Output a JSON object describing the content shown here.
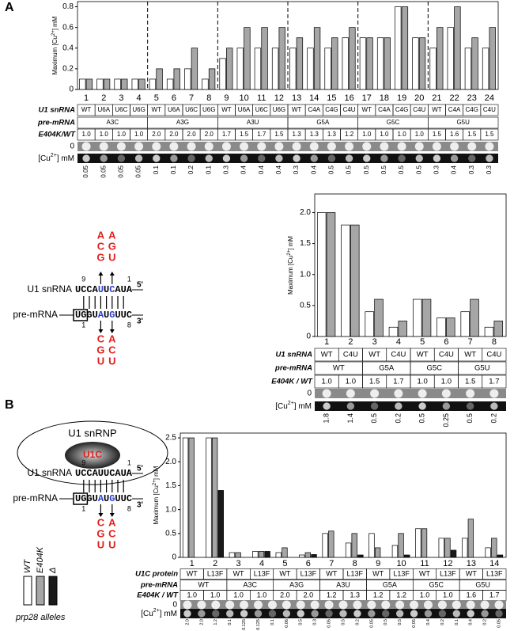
{
  "panel_labels": [
    "A",
    "B"
  ],
  "chart_data": [
    {
      "type": "bar",
      "categories": [
        "1",
        "2",
        "3",
        "4",
        "5",
        "6",
        "7",
        "8",
        "9",
        "10",
        "11",
        "12",
        "13",
        "14",
        "15",
        "16",
        "17",
        "18",
        "19",
        "20",
        "21",
        "22",
        "23",
        "24"
      ],
      "y_label": [
        "Maximum [Cu",
        "2+",
        "] mM"
      ],
      "ylim": [
        0,
        0.85
      ],
      "yticks": [
        0,
        0.2,
        0.4,
        0.6,
        0.8
      ],
      "series": [
        {
          "color": "#ffffff",
          "values": [
            0.1,
            0.1,
            0.1,
            0.1,
            0.1,
            0.1,
            0.2,
            0.1,
            0.3,
            0.4,
            0.4,
            0.4,
            0.4,
            0.4,
            0.4,
            0.5,
            0.5,
            0.5,
            0.8,
            0.5,
            0.4,
            0.6,
            0.4,
            0.4
          ]
        },
        {
          "color": "#a6a6a6",
          "values": [
            0.1,
            0.1,
            0.1,
            0.1,
            0.2,
            0.2,
            0.4,
            0.2,
            0.4,
            0.6,
            0.6,
            0.6,
            0.5,
            0.6,
            0.5,
            0.6,
            0.5,
            0.5,
            0.8,
            0.5,
            0.6,
            0.8,
            0.5,
            0.6
          ]
        }
      ],
      "rows": [
        {
          "label": "U1 snRNA",
          "cells": [
            "WT",
            "U6A",
            "U6C",
            "U6G",
            "WT",
            "U6A",
            "U6C",
            "U6G",
            "WT",
            "U6A",
            "U6C",
            "U6G",
            "WT",
            "C4A",
            "C4G",
            "C4U",
            "WT",
            "C4A",
            "C4G",
            "C4U",
            "WT",
            "C4A",
            "C4G",
            "C4U"
          ]
        },
        {
          "label": "pre-mRNA",
          "cells": [
            "A3C",
            "A3G",
            "A3U",
            "G5A",
            "G5C",
            "G5U"
          ]
        },
        {
          "label": "E404K/WT",
          "cells": [
            "1.0",
            "1.0",
            "1.0",
            "1.0",
            "2.0",
            "2.0",
            "2.0",
            "2.0",
            "1.7",
            "1.5",
            "1.7",
            "1.5",
            "1.3",
            "1.3",
            "1.3",
            "1.2",
            "1.0",
            "1.0",
            "1.0",
            "1.0",
            "1.5",
            "1.6",
            "1.5",
            "1.5"
          ]
        }
      ],
      "spot_row_labels": [
        "0",
        "[Cu",
        "2+",
        "] mM"
      ],
      "spot_labels": [
        "0.05",
        "0.05",
        "0.05",
        "0.05",
        "0.1",
        "0.1",
        "0.2",
        "0.1",
        "0.3",
        "0.4",
        "0.4",
        "0.4",
        "0.3",
        "0.4",
        "0.5",
        "0.5",
        "0.5",
        "0.5",
        "0.5",
        "0.5",
        "0.3",
        "0.4",
        "0.3",
        "0.3"
      ]
    },
    {
      "type": "bar",
      "categories": [
        "1",
        "2",
        "3",
        "4",
        "5",
        "6",
        "7",
        "8"
      ],
      "y_label": [
        "Maximum [Cu",
        "2+",
        "] mM"
      ],
      "ylim": [
        0,
        2.3
      ],
      "yticks": [
        0,
        0.5,
        {
          "value": 1,
          "label": "1.0"
        },
        1.5,
        {
          "value": 2,
          "label": "2.0"
        }
      ],
      "series": [
        {
          "color": "#ffffff",
          "values": [
            2.0,
            1.8,
            0.4,
            0.15,
            0.6,
            0.3,
            0.4,
            0.15
          ]
        },
        {
          "color": "#a6a6a6",
          "values": [
            2.0,
            1.8,
            0.6,
            0.25,
            0.6,
            0.3,
            0.6,
            0.25
          ]
        }
      ],
      "rows": [
        {
          "label": "U1 snRNA",
          "cells": [
            "WT",
            "C4U",
            "WT",
            "C4U",
            "WT",
            "C4U",
            "WT",
            "C4U"
          ]
        },
        {
          "label": "pre-mRNA",
          "cells": [
            "WT",
            "G5A",
            "G5C",
            "G5U"
          ]
        },
        {
          "label": "E404K / WT",
          "cells": [
            "1.0",
            "1.0",
            "1.5",
            "1.7",
            "1.0",
            "1.0",
            "1.5",
            "1.7"
          ]
        }
      ],
      "spot_row_labels": [
        "0",
        "[Cu",
        "2+",
        "] mM"
      ],
      "spot_labels": [
        "1.8",
        "1.4",
        "0.5",
        "0.2",
        "0.5",
        "0.25",
        "0.5",
        "0.2"
      ]
    },
    {
      "type": "bar",
      "categories": [
        "1",
        "2",
        "3",
        "4",
        "5",
        "6",
        "7",
        "8",
        "9",
        "10",
        "11",
        "12",
        "13",
        "14"
      ],
      "y_label": [
        "Maximum [Cu",
        "2+",
        "] mM"
      ],
      "ylim": [
        0,
        2.6
      ],
      "yticks": [
        0,
        0.5,
        {
          "value": 1,
          "label": "1.0"
        },
        1.5,
        {
          "value": 2,
          "label": "2.0"
        },
        2.5
      ],
      "series": [
        {
          "name": "WT",
          "color": "#ffffff",
          "values": [
            2.5,
            2.5,
            0.1,
            0.125,
            0.1,
            0.05,
            0.5,
            0.3,
            0.5,
            0.25,
            0.6,
            0.4,
            0.4,
            0.2
          ]
        },
        {
          "name": "E404K",
          "color": "#a6a6a6",
          "values": [
            2.5,
            2.5,
            0.1,
            0.125,
            0.2,
            0.1,
            0.55,
            0.5,
            0.2,
            0.5,
            0.6,
            0.4,
            0.8,
            0.4
          ]
        },
        {
          "name": "Δ",
          "color": "#1a1a1a",
          "values": [
            null,
            1.4,
            null,
            0.125,
            null,
            0.06,
            null,
            0.05,
            null,
            0.05,
            null,
            0.15,
            null,
            0.05
          ]
        }
      ],
      "legend_title": "prp28 alleles",
      "rows": [
        {
          "label": "U1C protein",
          "cells": [
            "WT",
            "L13F",
            "WT",
            "L13F",
            "WT",
            "L13F",
            "WT",
            "L13F",
            "WT",
            "L13F",
            "WT",
            "L13F",
            "WT",
            "L13F"
          ]
        },
        {
          "label": "pre-mRNA",
          "cells": [
            "WT",
            "A3C",
            "A3G",
            "A3U",
            "G5A",
            "G5C",
            "G5U"
          ]
        },
        {
          "label": "E404K / WT",
          "cells": [
            "1.0",
            "1.0",
            "1.0",
            "1.0",
            "2.0",
            "2.0",
            "1.2",
            "1.3",
            "1.2",
            "1.2",
            "1.0",
            "1.0",
            "1.6",
            "1.7"
          ]
        }
      ],
      "spot_row_labels": [
        "0",
        "[Cu",
        "2+",
        "] mM"
      ],
      "spot_labels": [
        "2.0",
        "2.0",
        "1.2",
        "0.1",
        "0.125",
        "0.125",
        "0.1",
        "0.06",
        "0.5",
        "0.3",
        "0.05",
        "0.5",
        "0.2",
        "0.05",
        "0.5",
        "0.5",
        "0.05",
        "0.4",
        "0.2",
        "0.1",
        "0.4",
        "0.2",
        "0.05"
      ]
    }
  ],
  "diagram_a": {
    "u1_label": "U1 snRNA",
    "pre_label": "pre-mRNA",
    "five": "5'",
    "three": "3'",
    "u1_seq": [
      "UCCA",
      "U",
      "U",
      "C",
      "AUA"
    ],
    "pre_box": "UG",
    "pre_seq": [
      "GU",
      "A",
      "U",
      "G",
      "UUC"
    ],
    "numbers": [
      "9",
      "1",
      "1",
      "8"
    ],
    "red_top": [
      [
        "A",
        "C",
        "G"
      ],
      [
        "A",
        "G",
        "U"
      ]
    ],
    "red_bottom": [
      [
        "C",
        "G",
        "U"
      ],
      [
        "A",
        "C",
        "U"
      ]
    ]
  },
  "diagram_b": {
    "complex": "U1 snRNP",
    "protein": "U1C",
    "u1_label": "U1 snRNA",
    "pre_label": "pre-mRNA",
    "five": "5'",
    "three": "3'",
    "u1_seq": [
      "UCCAUUCAUA"
    ],
    "pre_box": "UG",
    "pre_seq": [
      "GU",
      "A",
      "U",
      "G",
      "UUC"
    ],
    "numbers": [
      "9",
      "1",
      "1",
      "8"
    ],
    "red_bottom": [
      [
        "C",
        "G",
        "U"
      ],
      [
        "A",
        "C",
        "U"
      ]
    ]
  }
}
